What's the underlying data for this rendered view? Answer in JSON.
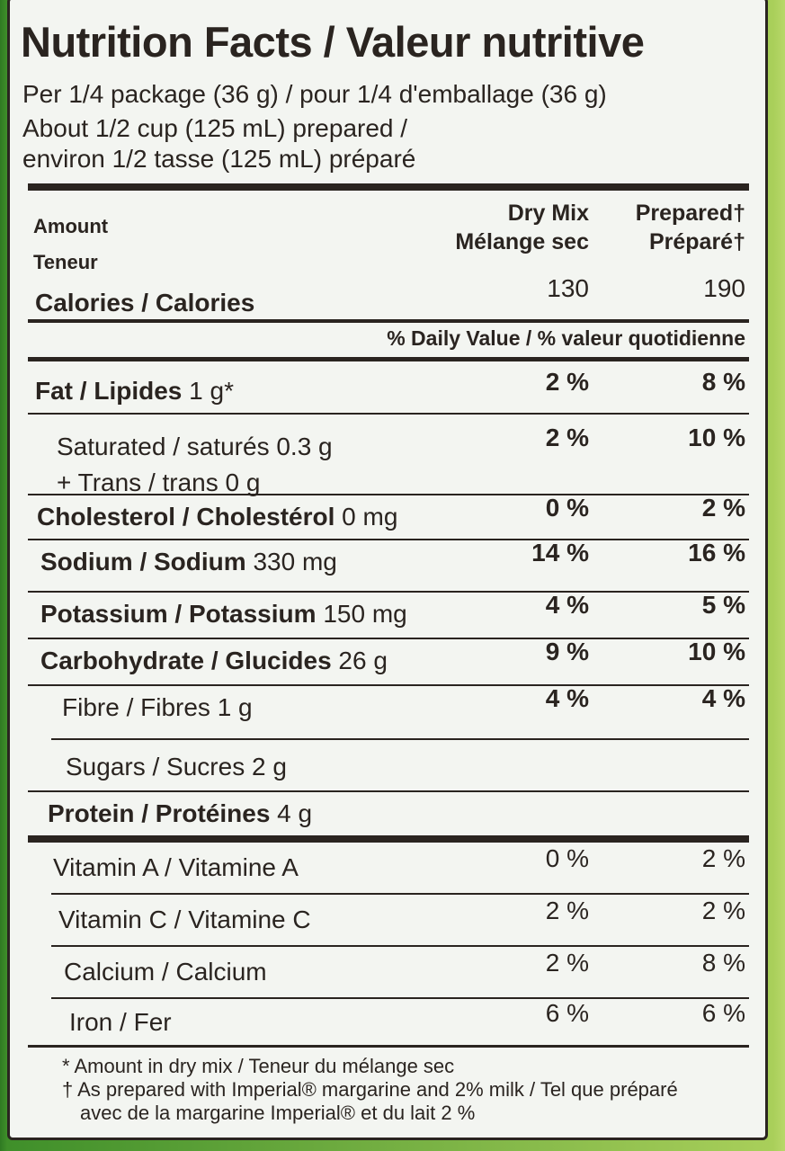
{
  "title": "Nutrition Facts / Valeur nutritive",
  "serving": [
    "Per 1/4 package (36 g) / pour 1/4 d'emballage (36 g)",
    "About 1/2 cup (125 mL) prepared /",
    "environ 1/2 tasse (125 mL) préparé"
  ],
  "header": {
    "amount": "Amount",
    "teneur": "Teneur",
    "col1_en": "Dry Mix",
    "col1_fr": "Mélange sec",
    "col2_en": "Prepared†",
    "col2_fr": "Préparé†"
  },
  "calories": {
    "label": "Calories / Calories",
    "dry": "130",
    "prepared": "190"
  },
  "dv_header": "% Daily Value / % valeur quotidienne",
  "nutrients": [
    {
      "bold": "Fat / Lipides",
      "amount": " 1 g*",
      "dry": "2 %",
      "prepared": "8 %"
    },
    {
      "bold": "",
      "amount": "Saturated / saturés 0.3 g",
      "dry": "2 %",
      "prepared": "10 %"
    },
    {
      "bold": "",
      "amount": "+ Trans / trans 0 g",
      "dry": "",
      "prepared": ""
    },
    {
      "bold": "Cholesterol / Cholestérol",
      "amount": " 0 mg",
      "dry": "0 %",
      "prepared": "2 %"
    },
    {
      "bold": "Sodium / Sodium",
      "amount": " 330 mg",
      "dry": "14 %",
      "prepared": "16 %"
    },
    {
      "bold": "Potassium / Potassium",
      "amount": " 150 mg",
      "dry": "4 %",
      "prepared": "5 %"
    },
    {
      "bold": "Carbohydrate / Glucides",
      "amount": " 26 g",
      "dry": "9 %",
      "prepared": "10 %"
    },
    {
      "bold": "",
      "amount": "Fibre / Fibres 1 g",
      "dry": "4 %",
      "prepared": "4 %"
    },
    {
      "bold": "",
      "amount": "Sugars / Sucres 2 g",
      "dry": "",
      "prepared": ""
    },
    {
      "bold": "Protein / Protéines",
      "amount": " 4 g",
      "dry": "",
      "prepared": ""
    }
  ],
  "vitamins": [
    {
      "label": "Vitamin A / Vitamine A",
      "dry": "0 %",
      "prepared": "2 %"
    },
    {
      "label": "Vitamin C / Vitamine C",
      "dry": "2 %",
      "prepared": "2 %"
    },
    {
      "label": "Calcium / Calcium",
      "dry": "2 %",
      "prepared": "8 %"
    },
    {
      "label": "Iron / Fer",
      "dry": "6 %",
      "prepared": "6 %"
    }
  ],
  "footnotes": [
    "* Amount in dry mix / Teneur du mélange sec",
    "† As prepared with Imperial® margarine and 2% milk / Tel que préparé",
    "avec de la margarine Imperial® et du lait 2 %"
  ]
}
